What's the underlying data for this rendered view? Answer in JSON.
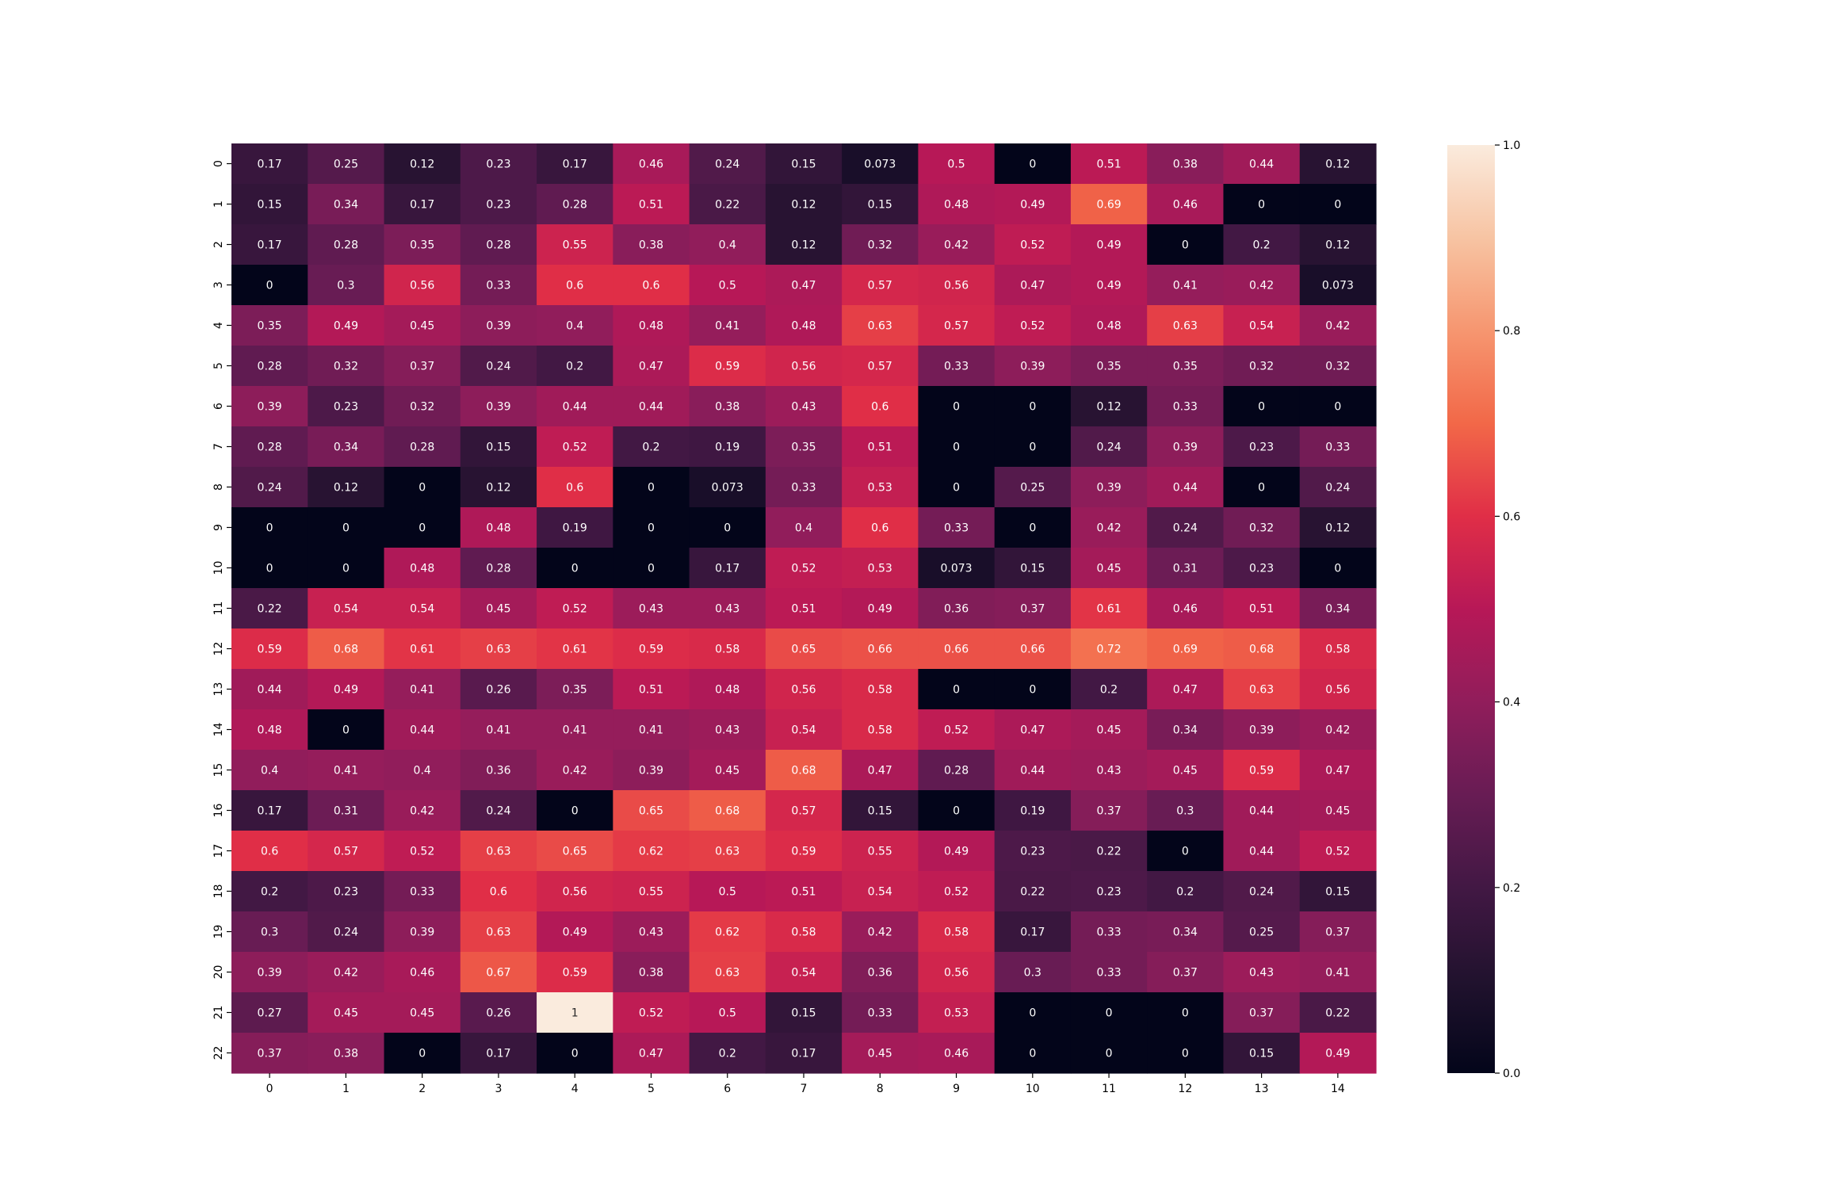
{
  "chart_data": {
    "type": "heatmap",
    "title": "",
    "xlabel": "",
    "ylabel": "",
    "x_tick_labels": [
      "0",
      "1",
      "2",
      "3",
      "4",
      "5",
      "6",
      "7",
      "8",
      "9",
      "10",
      "11",
      "12",
      "13",
      "14"
    ],
    "y_tick_labels": [
      "0",
      "1",
      "2",
      "3",
      "4",
      "5",
      "6",
      "7",
      "8",
      "9",
      "10",
      "11",
      "12",
      "13",
      "14",
      "15",
      "16",
      "17",
      "18",
      "19",
      "20",
      "21",
      "22"
    ],
    "cell_labels": [
      [
        "0.17",
        "0.25",
        "0.12",
        "0.23",
        "0.17",
        "0.46",
        "0.24",
        "0.15",
        "0.073",
        "0.5",
        "0",
        "0.51",
        "0.38",
        "0.44",
        "0.12"
      ],
      [
        "0.15",
        "0.34",
        "0.17",
        "0.23",
        "0.28",
        "0.51",
        "0.22",
        "0.12",
        "0.15",
        "0.48",
        "0.49",
        "0.69",
        "0.46",
        "0",
        "0"
      ],
      [
        "0.17",
        "0.28",
        "0.35",
        "0.28",
        "0.55",
        "0.38",
        "0.4",
        "0.12",
        "0.32",
        "0.42",
        "0.52",
        "0.49",
        "0",
        "0.2",
        "0.12"
      ],
      [
        "0",
        "0.3",
        "0.56",
        "0.33",
        "0.6",
        "0.6",
        "0.5",
        "0.47",
        "0.57",
        "0.56",
        "0.47",
        "0.49",
        "0.41",
        "0.42",
        "0.073"
      ],
      [
        "0.35",
        "0.49",
        "0.45",
        "0.39",
        "0.4",
        "0.48",
        "0.41",
        "0.48",
        "0.63",
        "0.57",
        "0.52",
        "0.48",
        "0.63",
        "0.54",
        "0.42"
      ],
      [
        "0.28",
        "0.32",
        "0.37",
        "0.24",
        "0.2",
        "0.47",
        "0.59",
        "0.56",
        "0.57",
        "0.33",
        "0.39",
        "0.35",
        "0.35",
        "0.32",
        "0.32"
      ],
      [
        "0.39",
        "0.23",
        "0.32",
        "0.39",
        "0.44",
        "0.44",
        "0.38",
        "0.43",
        "0.6",
        "0",
        "0",
        "0.12",
        "0.33",
        "0",
        "0"
      ],
      [
        "0.28",
        "0.34",
        "0.28",
        "0.15",
        "0.52",
        "0.2",
        "0.19",
        "0.35",
        "0.51",
        "0",
        "0",
        "0.24",
        "0.39",
        "0.23",
        "0.33"
      ],
      [
        "0.24",
        "0.12",
        "0",
        "0.12",
        "0.6",
        "0",
        "0.073",
        "0.33",
        "0.53",
        "0",
        "0.25",
        "0.39",
        "0.44",
        "0",
        "0.24"
      ],
      [
        "0",
        "0",
        "0",
        "0.48",
        "0.19",
        "0",
        "0",
        "0.4",
        "0.6",
        "0.33",
        "0",
        "0.42",
        "0.24",
        "0.32",
        "0.12"
      ],
      [
        "0",
        "0",
        "0.48",
        "0.28",
        "0",
        "0",
        "0.17",
        "0.52",
        "0.53",
        "0.073",
        "0.15",
        "0.45",
        "0.31",
        "0.23",
        "0"
      ],
      [
        "0.22",
        "0.54",
        "0.54",
        "0.45",
        "0.52",
        "0.43",
        "0.43",
        "0.51",
        "0.49",
        "0.36",
        "0.37",
        "0.61",
        "0.46",
        "0.51",
        "0.34"
      ],
      [
        "0.59",
        "0.68",
        "0.61",
        "0.63",
        "0.61",
        "0.59",
        "0.58",
        "0.65",
        "0.66",
        "0.66",
        "0.66",
        "0.72",
        "0.69",
        "0.68",
        "0.58"
      ],
      [
        "0.44",
        "0.49",
        "0.41",
        "0.26",
        "0.35",
        "0.51",
        "0.48",
        "0.56",
        "0.58",
        "0",
        "0",
        "0.2",
        "0.47",
        "0.63",
        "0.56"
      ],
      [
        "0.48",
        "0",
        "0.44",
        "0.41",
        "0.41",
        "0.41",
        "0.43",
        "0.54",
        "0.58",
        "0.52",
        "0.47",
        "0.45",
        "0.34",
        "0.39",
        "0.42"
      ],
      [
        "0.4",
        "0.41",
        "0.4",
        "0.36",
        "0.42",
        "0.39",
        "0.45",
        "0.68",
        "0.47",
        "0.28",
        "0.44",
        "0.43",
        "0.45",
        "0.59",
        "0.47"
      ],
      [
        "0.17",
        "0.31",
        "0.42",
        "0.24",
        "0",
        "0.65",
        "0.68",
        "0.57",
        "0.15",
        "0",
        "0.19",
        "0.37",
        "0.3",
        "0.44",
        "0.45"
      ],
      [
        "0.6",
        "0.57",
        "0.52",
        "0.63",
        "0.65",
        "0.62",
        "0.63",
        "0.59",
        "0.55",
        "0.49",
        "0.23",
        "0.22",
        "0",
        "0.44",
        "0.52"
      ],
      [
        "0.2",
        "0.23",
        "0.33",
        "0.6",
        "0.56",
        "0.55",
        "0.5",
        "0.51",
        "0.54",
        "0.52",
        "0.22",
        "0.23",
        "0.2",
        "0.24",
        "0.15"
      ],
      [
        "0.3",
        "0.24",
        "0.39",
        "0.63",
        "0.49",
        "0.43",
        "0.62",
        "0.58",
        "0.42",
        "0.58",
        "0.17",
        "0.33",
        "0.34",
        "0.25",
        "0.37"
      ],
      [
        "0.39",
        "0.42",
        "0.46",
        "0.67",
        "0.59",
        "0.38",
        "0.63",
        "0.54",
        "0.36",
        "0.56",
        "0.3",
        "0.33",
        "0.37",
        "0.43",
        "0.41"
      ],
      [
        "0.27",
        "0.45",
        "0.45",
        "0.26",
        "1",
        "0.52",
        "0.5",
        "0.15",
        "0.33",
        "0.53",
        "0",
        "0",
        "0",
        "0.37",
        "0.22"
      ],
      [
        "0.37",
        "0.38",
        "0",
        "0.17",
        "0",
        "0.47",
        "0.2",
        "0.17",
        "0.45",
        "0.46",
        "0",
        "0",
        "0",
        "0.15",
        "0.49"
      ]
    ],
    "value_range": [
      0,
      1
    ],
    "colormap": "rocket",
    "colorbar": {
      "ticks": [
        "0.0",
        "0.2",
        "0.4",
        "0.6",
        "0.8",
        "1.0"
      ],
      "position": "right"
    },
    "grid": false,
    "annotations_color": "#ffffff"
  }
}
